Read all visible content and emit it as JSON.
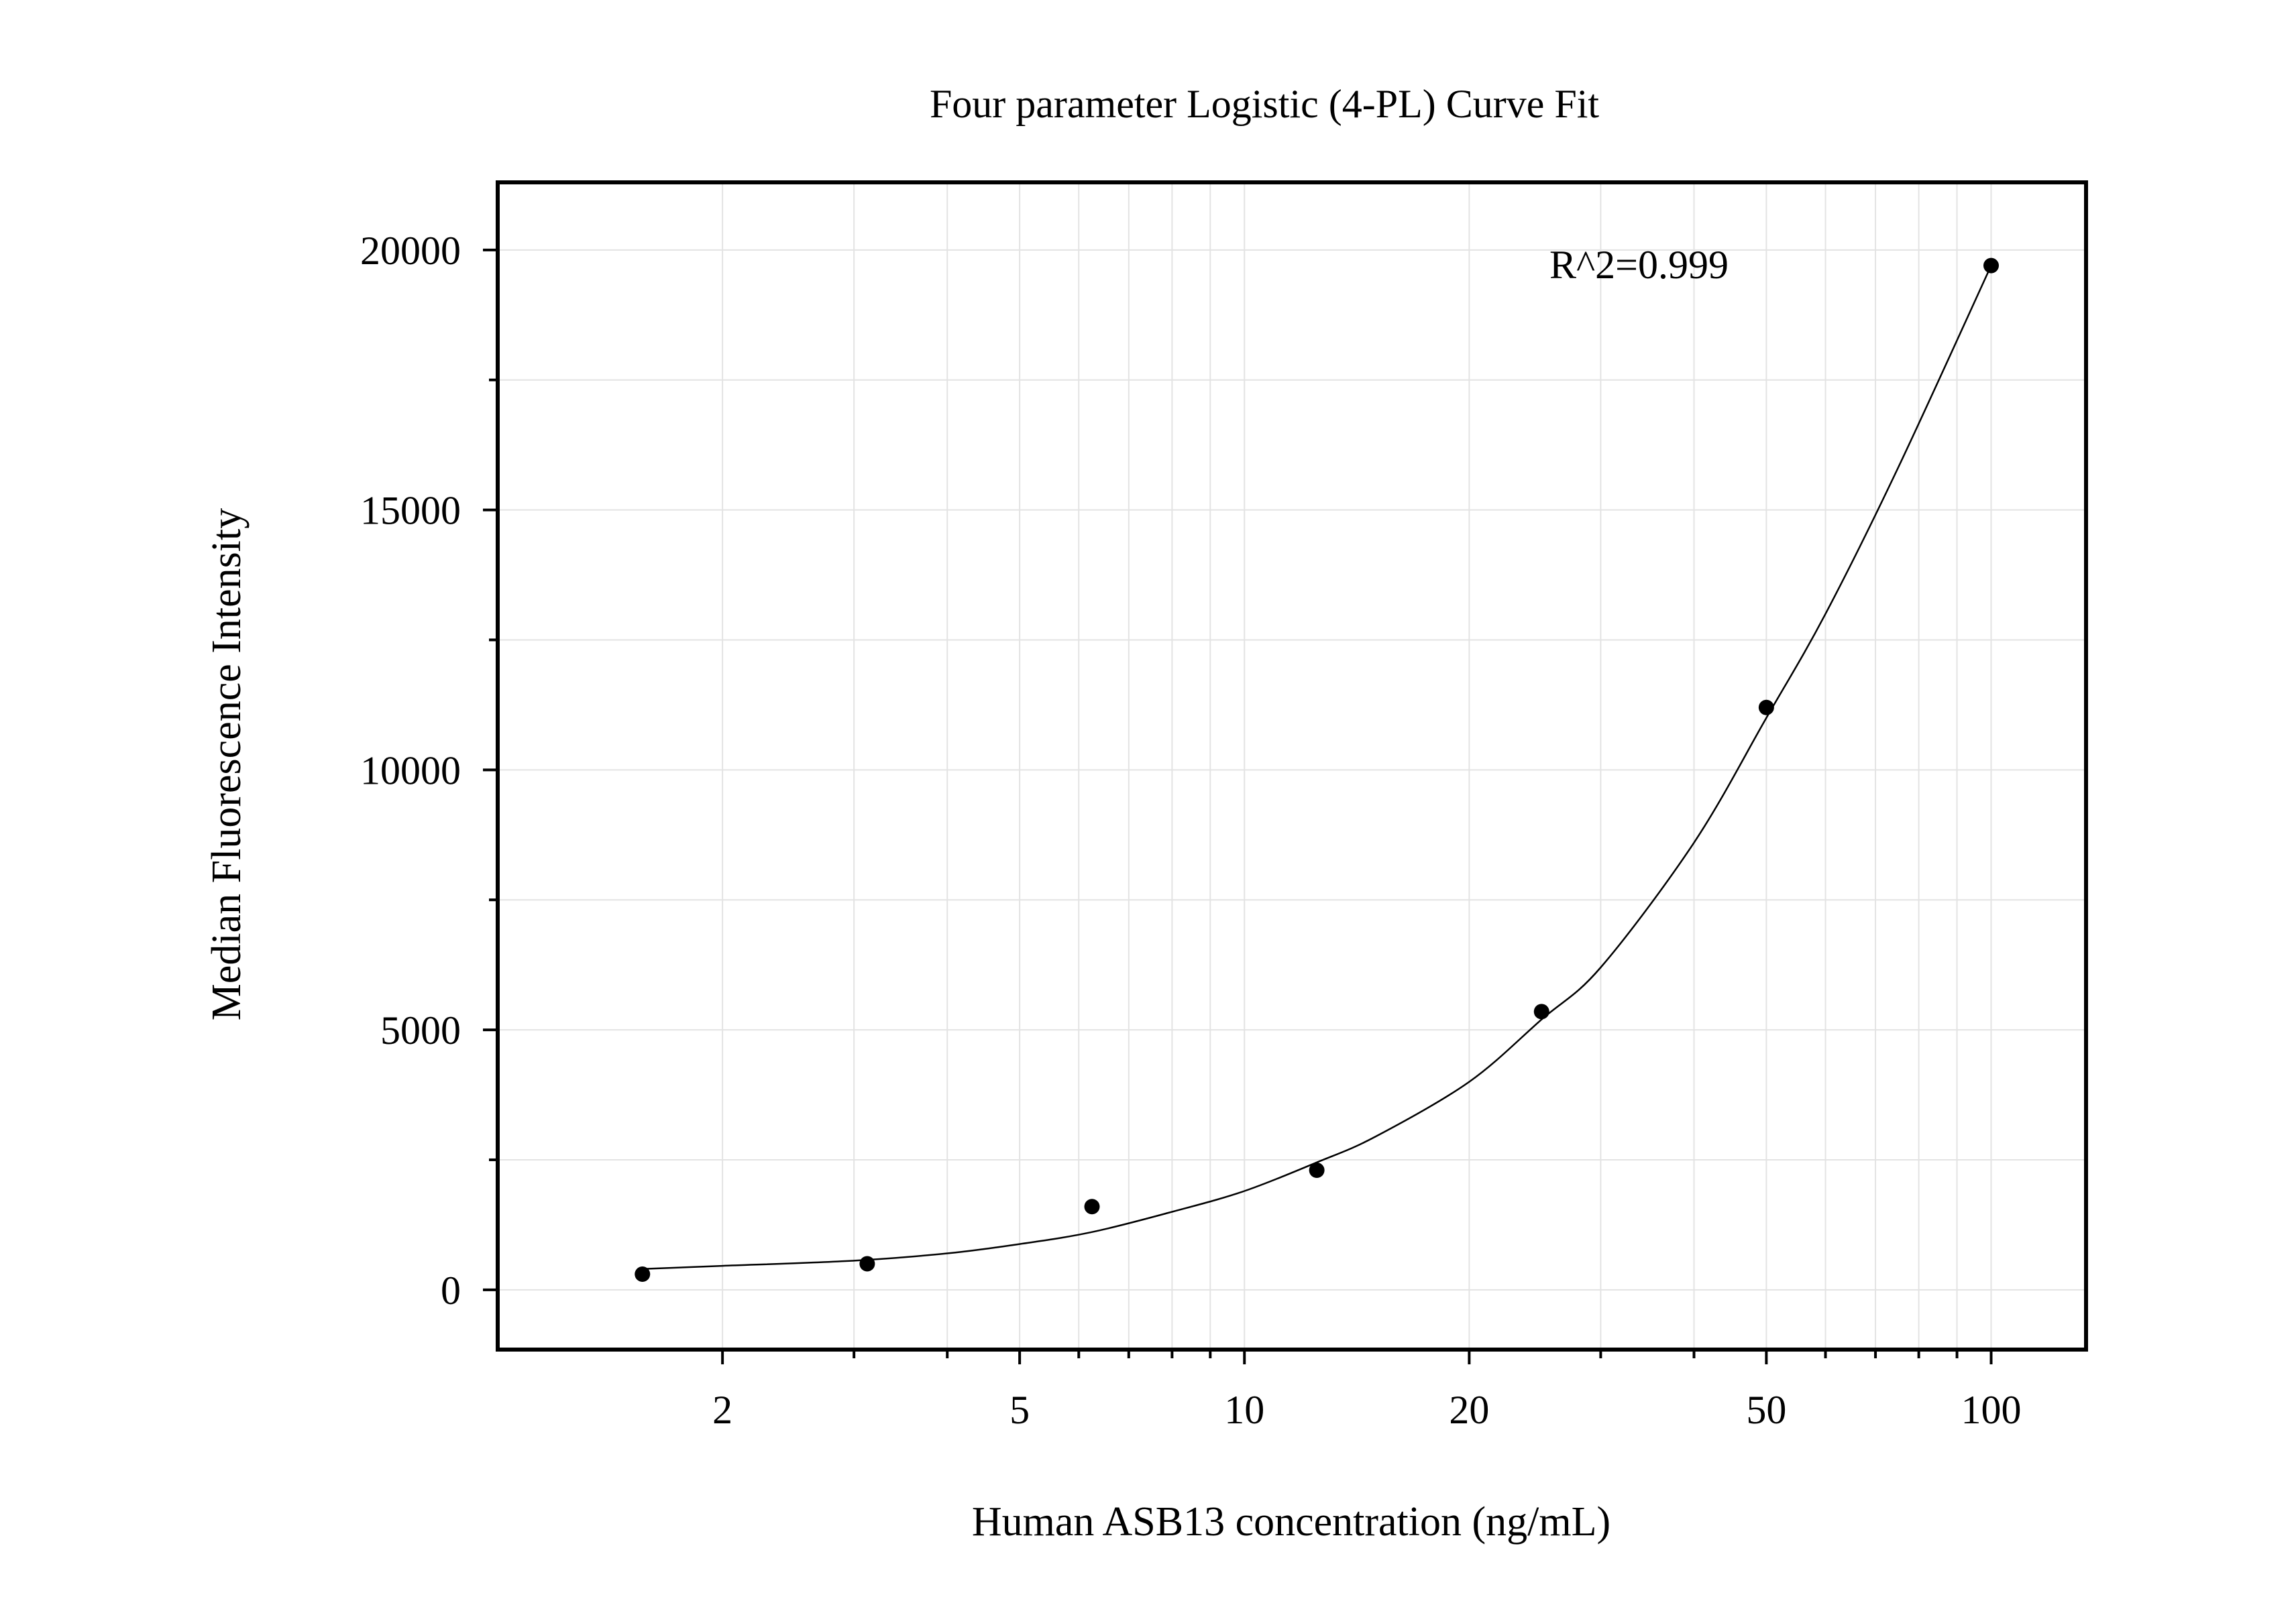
{
  "chart_data": {
    "type": "scatter",
    "title": "Four parameter Logistic (4-PL) Curve Fit",
    "xlabel": "Human ASB13 concentration (ng/mL)",
    "ylabel": "Median Fluorescence Intensity",
    "x_scale": "log",
    "xlim": [
      1.0,
      134.0
    ],
    "ylim": [
      -1150,
      21300
    ],
    "x_ticks": [
      2,
      5,
      10,
      20,
      50,
      100
    ],
    "x_tick_labels": [
      "2",
      "5",
      "10",
      "20",
      "50",
      "100"
    ],
    "y_ticks": [
      0,
      5000,
      10000,
      15000,
      20000
    ],
    "y_tick_labels": [
      "0",
      "5000",
      "10000",
      "15000",
      "20000"
    ],
    "grid": true,
    "annotation": "R^2=0.999",
    "series": [
      {
        "type": "scatter",
        "x": [
          1.5625,
          3.125,
          6.25,
          12.5,
          25,
          50,
          100
        ],
        "y": [
          300,
          500,
          1600,
          2300,
          5350,
          11200,
          19700
        ],
        "color": "#000000"
      },
      {
        "type": "line",
        "fit": "4PL",
        "x": [
          1.5625,
          2,
          3,
          4,
          5,
          6.25,
          8,
          10,
          12.5,
          15,
          20,
          25,
          30,
          40,
          50,
          60,
          75,
          100
        ],
        "y": [
          400,
          460,
          560,
          700,
          880,
          1110,
          1500,
          1900,
          2450,
          2950,
          4000,
          5200,
          6200,
          8600,
          11000,
          13000,
          15800,
          19700
        ],
        "color": "#000000"
      }
    ]
  }
}
